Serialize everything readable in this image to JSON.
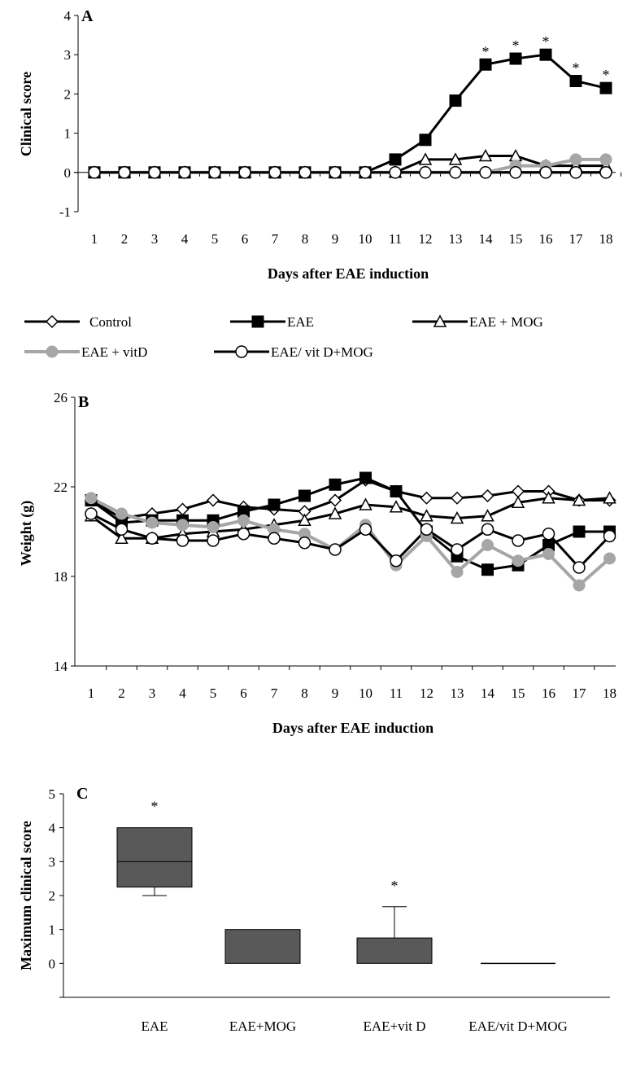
{
  "chart_data": [
    {
      "type": "line",
      "panel": "A",
      "xlabel": "Days after EAE induction",
      "ylabel": "Clinical score",
      "ylim": [
        -1,
        4
      ],
      "x": [
        1,
        2,
        3,
        4,
        5,
        6,
        7,
        8,
        9,
        10,
        11,
        12,
        13,
        14,
        15,
        16,
        17,
        18
      ],
      "yticks": [
        "-1",
        "0",
        "1",
        "2",
        "3",
        "4"
      ],
      "series": [
        {
          "name": "Control",
          "marker": "open-diamond",
          "color": "#000000",
          "values": [
            0,
            0,
            0,
            0,
            0,
            0,
            0,
            0,
            0,
            0,
            0,
            0,
            0,
            0,
            0,
            0,
            0,
            0
          ]
        },
        {
          "name": "EAE",
          "marker": "filled-square",
          "color": "#000000",
          "values": [
            0,
            0,
            0,
            0,
            0,
            0,
            0,
            0,
            0,
            0,
            0.33,
            0.83,
            1.83,
            2.75,
            2.9,
            3.0,
            2.33,
            2.15
          ]
        },
        {
          "name": "EAE + MOG",
          "marker": "open-triangle",
          "color": "#000000",
          "values": [
            0,
            0,
            0,
            0,
            0,
            0,
            0,
            0,
            0,
            0,
            0,
            0.33,
            0.33,
            0.42,
            0.42,
            0.17,
            0.17,
            0.17
          ]
        },
        {
          "name": "EAE + vitD",
          "marker": "filled-circle",
          "color": "#a6a6a6",
          "values": [
            0,
            0,
            0,
            0,
            0,
            0,
            0,
            0,
            0,
            0,
            0,
            0,
            0,
            0,
            0.17,
            0.17,
            0.33,
            0.33
          ]
        },
        {
          "name": "EAE/ vit D+MOG",
          "marker": "open-circle",
          "color": "#000000",
          "values": [
            0,
            0,
            0,
            0,
            0,
            0,
            0,
            0,
            0,
            0,
            0,
            0,
            0,
            0,
            0,
            0,
            0,
            0
          ]
        }
      ],
      "annotations": [
        {
          "text": "*",
          "x": 14,
          "series": "EAE"
        },
        {
          "text": "*",
          "x": 15,
          "series": "EAE"
        },
        {
          "text": "*",
          "x": 16,
          "series": "EAE"
        },
        {
          "text": "*",
          "x": 17,
          "series": "EAE"
        },
        {
          "text": "*",
          "x": 18,
          "series": "EAE"
        }
      ],
      "legend": "bottom"
    },
    {
      "type": "line",
      "panel": "B",
      "xlabel": "Days after EAE induction",
      "ylabel": "Weight (g)",
      "ylim": [
        14,
        26
      ],
      "x": [
        1,
        2,
        3,
        4,
        5,
        6,
        7,
        8,
        9,
        10,
        11,
        12,
        13,
        14,
        15,
        16,
        17,
        18
      ],
      "yticks": [
        "14",
        "18",
        "22",
        "26"
      ],
      "series": [
        {
          "name": "Control",
          "values": [
            21.4,
            20.6,
            20.8,
            21.0,
            21.4,
            21.1,
            21.0,
            20.9,
            21.4,
            22.3,
            21.8,
            21.5,
            21.5,
            21.6,
            21.8,
            21.8,
            21.4,
            21.4
          ]
        },
        {
          "name": "EAE",
          "values": [
            21.4,
            20.4,
            20.5,
            20.5,
            20.5,
            20.9,
            21.2,
            21.6,
            22.1,
            22.4,
            21.8,
            20.0,
            18.9,
            18.3,
            18.5,
            19.4,
            20.0,
            20.0
          ]
        },
        {
          "name": "EAE + MOG",
          "values": [
            20.7,
            19.7,
            19.7,
            19.9,
            20.0,
            20.1,
            20.3,
            20.5,
            20.8,
            21.2,
            21.1,
            20.7,
            20.6,
            20.7,
            21.3,
            21.5,
            21.4,
            21.5
          ]
        },
        {
          "name": "EAE + vitD",
          "values": [
            21.5,
            20.8,
            20.4,
            20.3,
            20.2,
            20.5,
            20.1,
            19.9,
            19.2,
            20.3,
            18.5,
            19.8,
            18.2,
            19.4,
            18.7,
            19.0,
            17.6,
            18.8
          ]
        },
        {
          "name": "EAE/ vit D+MOG",
          "values": [
            20.8,
            20.1,
            19.7,
            19.6,
            19.6,
            19.9,
            19.7,
            19.5,
            19.2,
            20.1,
            18.7,
            20.1,
            19.2,
            20.1,
            19.6,
            19.9,
            18.4,
            19.8
          ]
        }
      ]
    },
    {
      "type": "box",
      "panel": "C",
      "ylabel": "Maximum clinical score",
      "ylim": [
        -1,
        5
      ],
      "yticks": [
        "0",
        "1",
        "2",
        "3",
        "4",
        "5"
      ],
      "categories": [
        "EAE",
        "EAE+MOG",
        "EAE+vit D",
        "EAE/vit D+MOG"
      ],
      "boxes": [
        {
          "q1": 2.25,
          "median": 3,
          "q3": 4,
          "whisker_low": 2,
          "whisker_high": 4,
          "star": "*"
        },
        {
          "q1": 0,
          "median": 0,
          "q3": 1,
          "whisker_low": 0,
          "whisker_high": 1,
          "star": ""
        },
        {
          "q1": 0,
          "median": 0,
          "q3": 0.75,
          "whisker_low": 0,
          "whisker_high": 1.67,
          "star": "*"
        },
        {
          "q1": 0,
          "median": 0,
          "q3": 0,
          "whisker_low": 0,
          "whisker_high": 0,
          "star": ""
        }
      ],
      "box_color": "#595959"
    }
  ],
  "labels": {
    "panel_a": "A",
    "panel_b": "B",
    "panel_c": "C"
  }
}
